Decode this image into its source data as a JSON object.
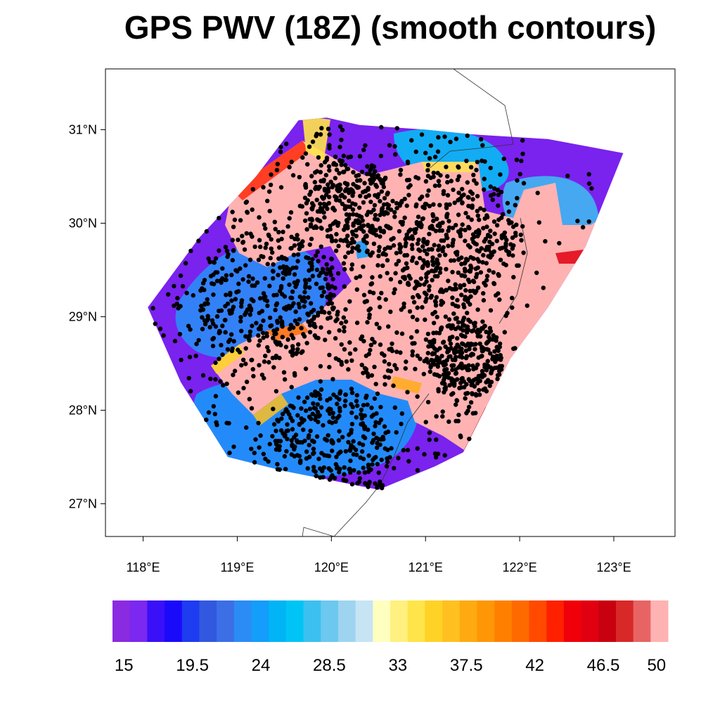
{
  "title": "GPS PWV (18Z) (smooth contours)",
  "map": {
    "lon_range": [
      117.6,
      123.65
    ],
    "lat_range": [
      26.65,
      31.65
    ],
    "lat_ticks": [
      {
        "value": 27,
        "label": "27°N"
      },
      {
        "value": 28,
        "label": "28°N"
      },
      {
        "value": 29,
        "label": "29°N"
      },
      {
        "value": 30,
        "label": "30°N"
      },
      {
        "value": 31,
        "label": "31°N"
      }
    ],
    "lon_ticks": [
      {
        "value": 118,
        "label": "118°E"
      },
      {
        "value": 119,
        "label": "119°E"
      },
      {
        "value": 120,
        "label": "120°E"
      },
      {
        "value": 121,
        "label": "121°E"
      },
      {
        "value": 122,
        "label": "122°E"
      },
      {
        "value": 123,
        "label": "123°E"
      }
    ],
    "station_hull": [
      [
        118.05,
        29.1
      ],
      [
        118.6,
        29.85
      ],
      [
        119.2,
        30.5
      ],
      [
        119.65,
        31.1
      ],
      [
        119.95,
        31.13
      ],
      [
        120.3,
        31.05
      ],
      [
        121.0,
        31.0
      ],
      [
        121.5,
        30.95
      ],
      [
        122.3,
        30.9
      ],
      [
        123.1,
        30.75
      ],
      [
        122.7,
        29.75
      ],
      [
        122.3,
        29.1
      ],
      [
        121.9,
        28.55
      ],
      [
        121.4,
        27.55
      ],
      [
        121.1,
        27.4
      ],
      [
        120.5,
        27.15
      ],
      [
        119.5,
        27.35
      ],
      [
        118.9,
        27.5
      ],
      [
        118.4,
        28.3
      ]
    ],
    "stations_shown": "dense GPS station network, black dots"
  },
  "colorbar": {
    "colors": [
      "#8a2be2",
      "#7b28f0",
      "#3a10f8",
      "#1a0afa",
      "#1e3cf0",
      "#3358e0",
      "#3c6fe6",
      "#2b8cf6",
      "#149dfa",
      "#00b4f5",
      "#00c4f5",
      "#3cc0f0",
      "#6cc8ee",
      "#9ed4ef",
      "#c6e4f4",
      "#ffffc0",
      "#fff080",
      "#ffe44a",
      "#ffd226",
      "#ffc020",
      "#ffaa10",
      "#ff9606",
      "#ff8000",
      "#ff6a00",
      "#ff4a00",
      "#ff2000",
      "#f00008",
      "#e00010",
      "#c80010",
      "#d82828",
      "#e86464",
      "#ffb2b2"
    ],
    "labels": [
      "15",
      "19.5",
      "24",
      "28.5",
      "33",
      "37.5",
      "42",
      "46.5",
      "50"
    ],
    "label_values": [
      15,
      19.5,
      24,
      28.5,
      33,
      37.5,
      42,
      46.5,
      50
    ],
    "value_range": [
      14.25,
      50.75
    ]
  }
}
